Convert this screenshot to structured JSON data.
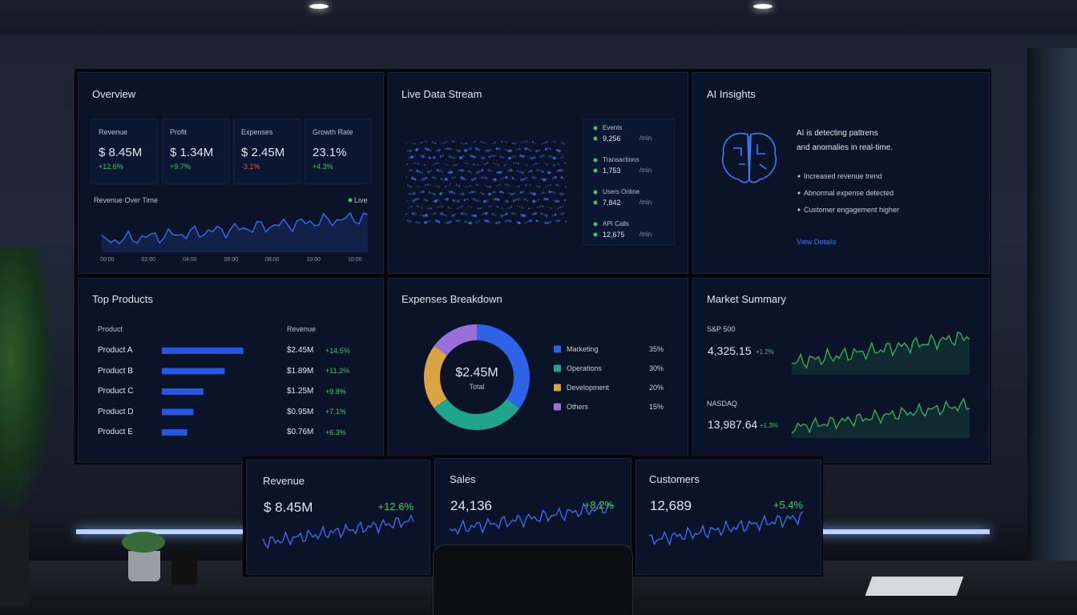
{
  "overview": {
    "title": "Overview",
    "kpis": [
      {
        "label": "Revenue",
        "value": "$ 8.45M",
        "change": "+12.6%"
      },
      {
        "label": "Profit",
        "value": "$ 1.34M",
        "change": "+9.7%"
      },
      {
        "label": "Expenses",
        "value": "$ 2.45M",
        "change": "-3.1%"
      },
      {
        "label": "Growth Rate",
        "value": "23.1%",
        "change": "+4.3%"
      }
    ],
    "chart_title": "Revenue Over Time",
    "live": "Live",
    "x_labels": [
      "00:00",
      "02:00",
      "04:00",
      "06:00",
      "08:00",
      "10:00",
      "10:00"
    ]
  },
  "live_stream": {
    "title": "Live Data Stream",
    "metrics": [
      {
        "label": "Events",
        "value": "9,256",
        "unit": "/min"
      },
      {
        "label": "Transactions",
        "value": "1,753",
        "unit": "/min"
      },
      {
        "label": "Users Online",
        "value": "7,842",
        "unit": "/min"
      },
      {
        "label": "API Calls",
        "value": "12,675",
        "unit": "/min"
      }
    ]
  },
  "ai_insights": {
    "title": "AI Insights",
    "message": [
      "AI is detecting pattrens",
      "and anomalies in real-time."
    ],
    "bullets": [
      "Increased revenue trend",
      "Abnormal expense detected",
      "Customer engagement higher"
    ],
    "link": "View Details"
  },
  "top_products": {
    "title": "Top Products",
    "headers": [
      "Product",
      "Revenue"
    ],
    "rows": [
      {
        "name": "Product A",
        "revenue": "$2.45M",
        "change": "+14.5%"
      },
      {
        "name": "Product B",
        "revenue": "$1.89M",
        "change": "+11.2%"
      },
      {
        "name": "Product C",
        "revenue": "$1.25M",
        "change": "+9.8%"
      },
      {
        "name": "Product D",
        "revenue": "$0.95M",
        "change": "+7.1%"
      },
      {
        "name": "Product E",
        "revenue": "$0.76M",
        "change": "+6.3%"
      }
    ]
  },
  "expenses": {
    "title": "Expenses Breakdown",
    "total": "$2.45M",
    "total_label": "Total",
    "items": [
      {
        "label": "Marketing",
        "share": "35%",
        "color": "#2c63e8"
      },
      {
        "label": "Operations",
        "share": "30%",
        "color": "#1fa58f"
      },
      {
        "label": "Development",
        "share": "20%",
        "color": "#d9a441"
      },
      {
        "label": "Others",
        "share": "15%",
        "color": "#9a6fd8"
      }
    ]
  },
  "market": {
    "title": "Market Summary",
    "indices": [
      {
        "name": "S&P 500",
        "value": "4,325.15",
        "change": "+1.2%"
      },
      {
        "name": "NASDAQ",
        "value": "13,987.64",
        "change": "+1.3%"
      }
    ]
  },
  "monitors": [
    {
      "title": "Revenue",
      "value": "$ 8.45M",
      "change": "+12.6%"
    },
    {
      "title": "Sales",
      "value": "24,136",
      "change": "+8.2%"
    },
    {
      "title": "Customers",
      "value": "12,689",
      "change": "+5.4%"
    }
  ]
}
